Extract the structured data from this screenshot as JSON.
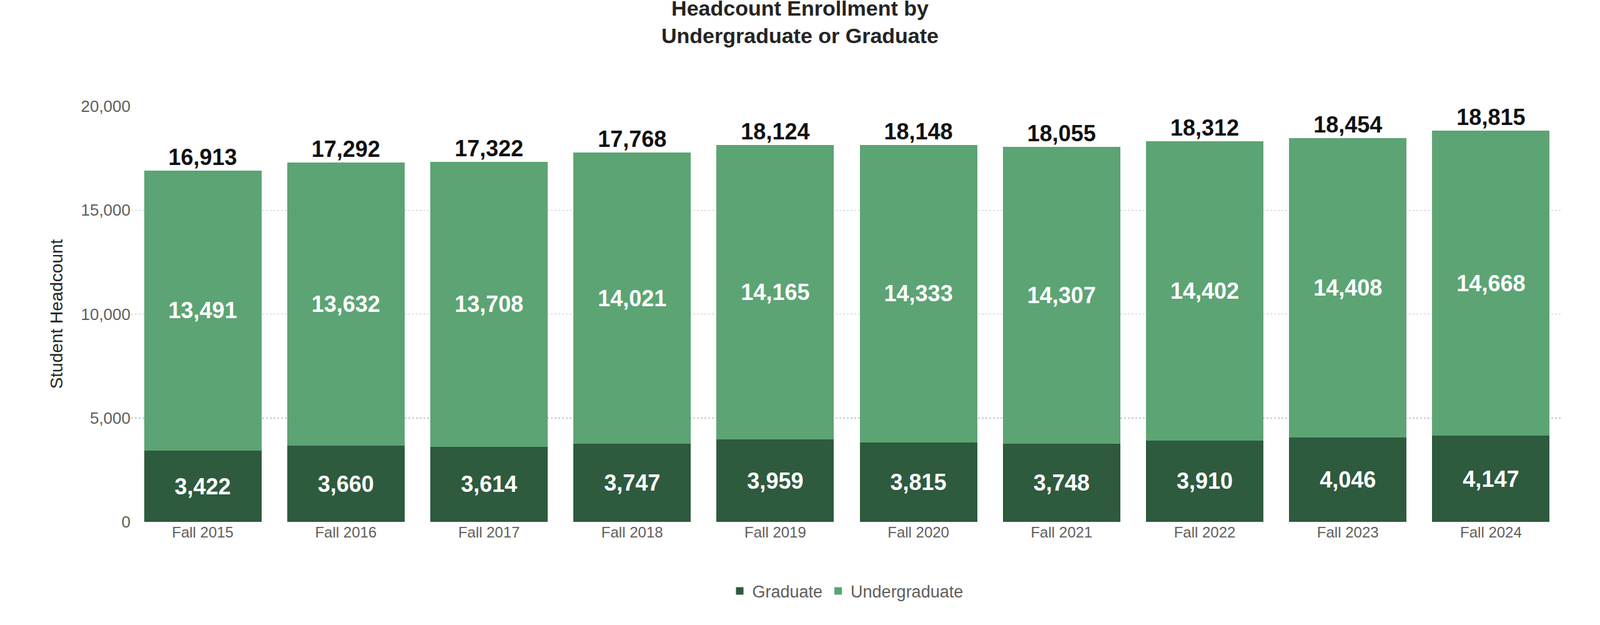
{
  "chart_data": {
    "type": "bar",
    "title": [
      "Headcount Enrollment by",
      "Undergraduate or Graduate"
    ],
    "y_label": "Student Headcount",
    "categories": [
      "Fall 2015",
      "Fall 2016",
      "Fall 2017",
      "Fall 2018",
      "Fall 2019",
      "Fall 2020",
      "Fall 2021",
      "Fall 2022",
      "Fall 2023",
      "Fall 2024"
    ],
    "series": [
      {
        "name": "Graduate",
        "color": "#2e5a3e",
        "values": [
          3422,
          3660,
          3614,
          3747,
          3959,
          3815,
          3748,
          3910,
          4046,
          4147
        ],
        "value_labels": [
          "3,422",
          "3,660",
          "3,614",
          "3,747",
          "3,959",
          "3,815",
          "3,748",
          "3,910",
          "4,046",
          "4,147"
        ]
      },
      {
        "name": "Undergraduate",
        "color": "#5ca474",
        "values": [
          13491,
          13632,
          13708,
          14021,
          14165,
          14333,
          14307,
          14402,
          14408,
          14668
        ],
        "value_labels": [
          "13,491",
          "13,632",
          "13,708",
          "14,021",
          "14,165",
          "14,333",
          "14,307",
          "14,402",
          "14,408",
          "14,668"
        ]
      }
    ],
    "totals": [
      16913,
      17292,
      17322,
      17768,
      18124,
      18148,
      18055,
      18312,
      18454,
      18815
    ],
    "total_labels": [
      "16,913",
      "17,292",
      "17,322",
      "17,768",
      "18,124",
      "18,148",
      "18,055",
      "18,312",
      "18,454",
      "18,815"
    ],
    "ylim": [
      0,
      20000
    ],
    "yticks": [
      0,
      {
        "value": 5000,
        "label": "5,000"
      },
      {
        "value": 10000,
        "label": "10,000"
      },
      {
        "value": 15000,
        "label": "15,000"
      },
      {
        "value": 20000,
        "label": "20,000"
      }
    ],
    "grid": true,
    "stacked": true,
    "data_labels": true,
    "legend": "bottom"
  }
}
